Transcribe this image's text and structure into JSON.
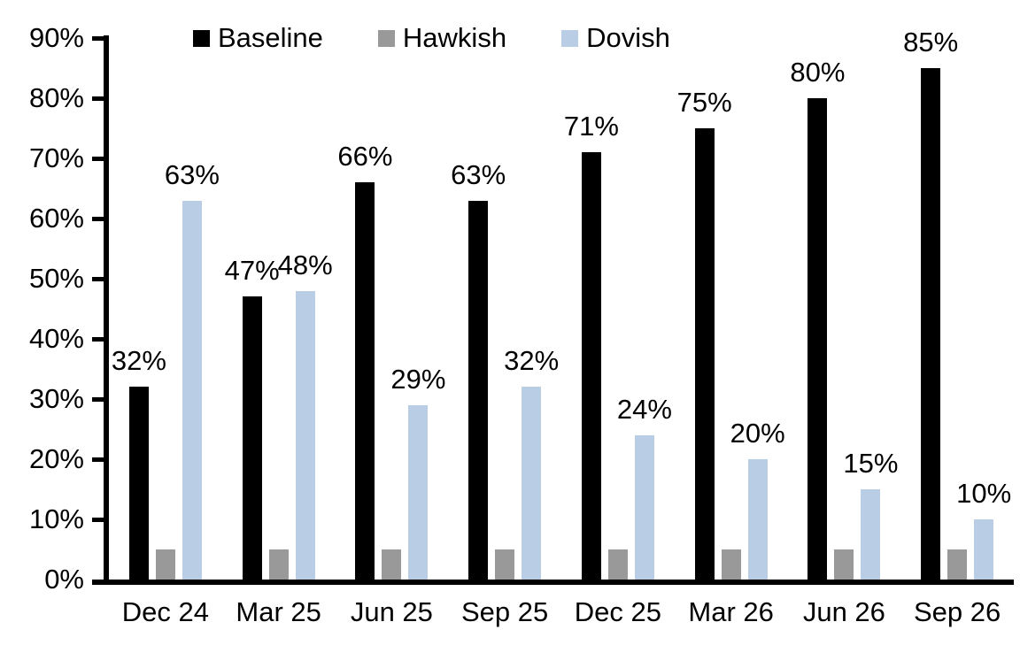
{
  "chart_data": {
    "type": "bar",
    "title": "",
    "categories": [
      "Dec 24",
      "Mar 25",
      "Jun 25",
      "Sep 25",
      "Dec 25",
      "Mar 26",
      "Jun 26",
      "Sep 26"
    ],
    "series": [
      {
        "name": "Baseline",
        "color": "#000000",
        "values": [
          32,
          47,
          66,
          63,
          71,
          75,
          80,
          85
        ],
        "labels": [
          "32%",
          "47%",
          "66%",
          "63%",
          "71%",
          "75%",
          "80%",
          "85%"
        ],
        "show_labels": true
      },
      {
        "name": "Hawkish",
        "color": "#999999",
        "values": [
          5,
          5,
          5,
          5,
          5,
          5,
          5,
          5
        ],
        "labels": [],
        "show_labels": false
      },
      {
        "name": "Dovish",
        "color": "#B9CDE5",
        "values": [
          63,
          48,
          29,
          32,
          24,
          20,
          15,
          10
        ],
        "labels": [
          "63%",
          "48%",
          "29%",
          "32%",
          "24%",
          "20%",
          "15%",
          "10%"
        ],
        "show_labels": true
      }
    ],
    "y_axis": {
      "min": 0,
      "max": 90,
      "tick_step": 10,
      "tick_labels": [
        "0%",
        "10%",
        "20%",
        "30%",
        "40%",
        "50%",
        "60%",
        "70%",
        "80%",
        "90%"
      ]
    },
    "x_axis_label": "",
    "y_axis_label": "",
    "grid": false,
    "legend": {
      "position": "top",
      "entries": [
        "Baseline",
        "Hawkish",
        "Dovish"
      ]
    }
  }
}
